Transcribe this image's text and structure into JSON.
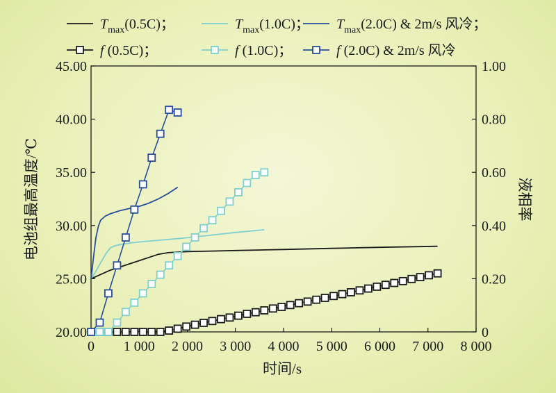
{
  "chart_data": {
    "type": "line",
    "xlabel": "时间/s",
    "ylabel_left": "电池组最高温度/℃",
    "ylabel_right": "液相率",
    "xlim": [
      0,
      8000
    ],
    "ylim_left": [
      20,
      45
    ],
    "ylim_right": [
      0,
      1
    ],
    "x_ticks": [
      0,
      1000,
      2000,
      3000,
      4000,
      5000,
      6000,
      7000,
      8000
    ],
    "x_tick_labels": [
      "0",
      "1 000",
      "2 000",
      "3 000",
      "4 000",
      "5 000",
      "6 000",
      "7 000",
      "8 000"
    ],
    "y_left_ticks": [
      20,
      25,
      30,
      35,
      40,
      45
    ],
    "y_left_tick_labels": [
      "20.00",
      "25.00",
      "30.00",
      "35.00",
      "40.00",
      "45.00"
    ],
    "y_right_ticks": [
      0,
      0.2,
      0.4,
      0.6,
      0.8,
      1.0
    ],
    "y_right_tick_labels": [
      "0",
      "0.20",
      "0.40",
      "0.60",
      "0.80",
      "1.00"
    ],
    "legend_position": "top",
    "series": [
      {
        "name": "Tmax(0.5C)；",
        "label_main": "T",
        "label_sub": "max",
        "label_rest": "(0.5C)；",
        "axis": "left",
        "marker": "none",
        "color": "#1a1a1a",
        "x": [
          0,
          200,
          400,
          600,
          800,
          1000,
          1200,
          1400,
          1600,
          1800,
          2000,
          2500,
          3000,
          4000,
          5000,
          6000,
          7200
        ],
        "y": [
          25.0,
          25.4,
          25.8,
          26.1,
          26.4,
          26.7,
          27.0,
          27.3,
          27.45,
          27.5,
          27.55,
          27.6,
          27.65,
          27.75,
          27.85,
          27.95,
          28.05
        ]
      },
      {
        "name": "Tmax(1.0C)；",
        "label_main": "T",
        "label_sub": "max",
        "label_rest": "(1.0C)；",
        "axis": "left",
        "marker": "none",
        "color": "#7fcfcf",
        "x": [
          0,
          100,
          200,
          300,
          400,
          500,
          600,
          800,
          1000,
          1500,
          2000,
          2500,
          3000,
          3600
        ],
        "y": [
          25.0,
          25.7,
          26.5,
          27.3,
          27.9,
          28.1,
          28.2,
          28.35,
          28.45,
          28.65,
          28.85,
          29.1,
          29.35,
          29.6
        ]
      },
      {
        "name": "Tmax(2.0C) & 2m/s 风冷；",
        "label_main": "T",
        "label_sub": "max",
        "label_rest": "(2.0C)  & 2m/s 风冷；",
        "axis": "left",
        "marker": "none",
        "color": "#2a4d9b",
        "x": [
          0,
          50,
          100,
          150,
          200,
          300,
          400,
          600,
          800,
          1000,
          1200,
          1400,
          1600,
          1800
        ],
        "y": [
          25.0,
          27.0,
          28.8,
          29.9,
          30.5,
          30.9,
          31.1,
          31.4,
          31.6,
          31.8,
          32.1,
          32.5,
          33.0,
          33.6
        ]
      },
      {
        "name": "f (0.5C)；",
        "label_main": "f",
        "label_sub": "",
        "label_rest": " (0.5C)；",
        "axis": "right",
        "marker": "square",
        "color": "#1a1a1a",
        "x": [
          0,
          180,
          360,
          540,
          720,
          900,
          1080,
          1260,
          1440,
          1620,
          1800,
          1980,
          2160,
          2340,
          2520,
          2700,
          2880,
          3060,
          3240,
          3420,
          3600,
          3780,
          3960,
          4140,
          4320,
          4500,
          4680,
          4860,
          5040,
          5220,
          5400,
          5580,
          5760,
          5940,
          6120,
          6300,
          6480,
          6660,
          6840,
          7020,
          7200
        ],
        "y": [
          0,
          0,
          0,
          0,
          0,
          0,
          0,
          0,
          0,
          0.005,
          0.012,
          0.02,
          0.027,
          0.034,
          0.041,
          0.048,
          0.054,
          0.061,
          0.068,
          0.074,
          0.081,
          0.088,
          0.094,
          0.101,
          0.108,
          0.114,
          0.121,
          0.128,
          0.135,
          0.142,
          0.149,
          0.156,
          0.163,
          0.17,
          0.177,
          0.184,
          0.191,
          0.199,
          0.206,
          0.213,
          0.22
        ]
      },
      {
        "name": "f (1.0C)；",
        "label_main": "f",
        "label_sub": "",
        "label_rest": " (1.0C)；",
        "axis": "right",
        "marker": "square",
        "color": "#7fcfcf",
        "x": [
          0,
          180,
          360,
          540,
          720,
          900,
          1080,
          1260,
          1440,
          1620,
          1800,
          1980,
          2160,
          2340,
          2520,
          2700,
          2880,
          3060,
          3240,
          3420,
          3600
        ],
        "y": [
          0,
          0,
          0,
          0.035,
          0.075,
          0.11,
          0.145,
          0.18,
          0.215,
          0.25,
          0.285,
          0.32,
          0.355,
          0.39,
          0.42,
          0.455,
          0.49,
          0.525,
          0.56,
          0.59,
          0.6
        ]
      },
      {
        "name": "f (2.0C) & 2m/s 风冷",
        "label_main": "f",
        "label_sub": "",
        "label_rest": " (2.0C) & 2m/s 风冷",
        "axis": "right",
        "marker": "square",
        "color": "#2a4d9b",
        "x": [
          0,
          180,
          360,
          540,
          720,
          900,
          1080,
          1260,
          1440,
          1620,
          1800
        ],
        "y": [
          0,
          0.035,
          0.145,
          0.25,
          0.355,
          0.46,
          0.555,
          0.655,
          0.745,
          0.835,
          0.825
        ]
      }
    ]
  }
}
